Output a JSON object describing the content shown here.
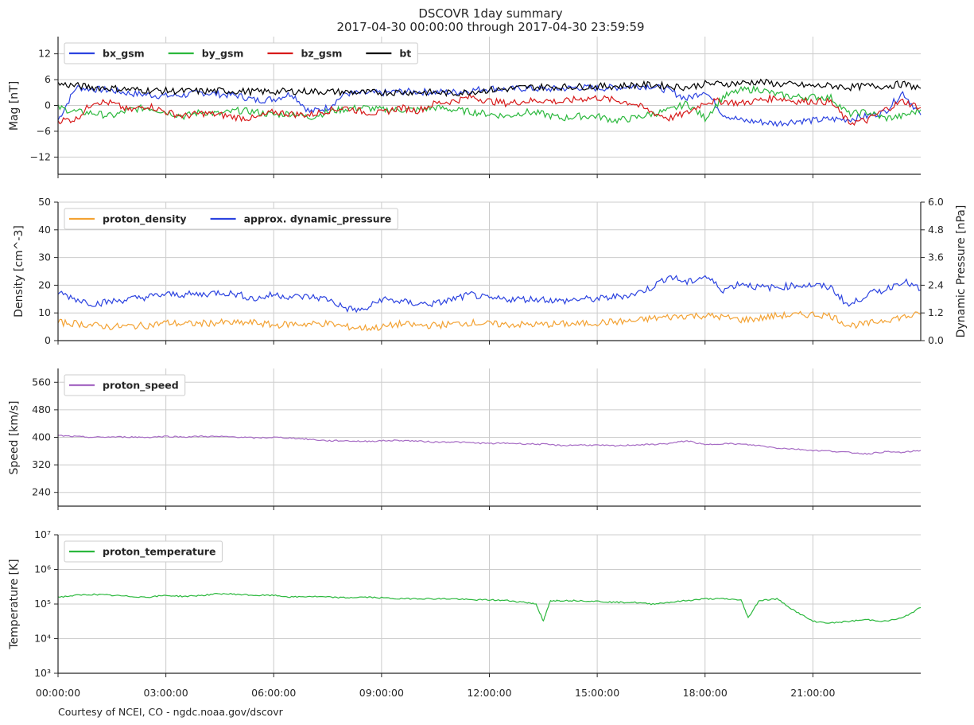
{
  "title_line1": "DSCOVR 1day summary",
  "title_line2": "2017-04-30 00:00:00 through 2017-04-30 23:59:59",
  "credit": "Courtesy of NCEI, CO - ngdc.noaa.gov/dscovr",
  "colors": {
    "grid": "#cccccc",
    "axis": "#262626",
    "bx_gsm": "#2c43e0",
    "by_gsm": "#2bb83d",
    "bz_gsm": "#d71a1a",
    "bt": "#000000",
    "proton_density": "#f3a233",
    "dynamic_pressure": "#2c43e0",
    "proton_speed": "#a66bc4",
    "proton_temperature": "#2bb83d"
  },
  "x_axis": {
    "range_hours": [
      0,
      24
    ],
    "tick_hours": [
      0,
      3,
      6,
      9,
      12,
      15,
      18,
      21
    ],
    "tick_labels": [
      "00:00:00",
      "03:00:00",
      "06:00:00",
      "09:00:00",
      "12:00:00",
      "15:00:00",
      "18:00:00",
      "21:00:00"
    ]
  },
  "chart_data": [
    {
      "type": "line",
      "id": "mag",
      "ylabel": "Mag   [nT]",
      "ylim": [
        -16,
        16
      ],
      "yticks": [
        -12,
        -6,
        0,
        6,
        12
      ],
      "ytick_labels": [
        "−12",
        "−6",
        "0",
        "6",
        "12"
      ],
      "grid": true,
      "legend_position": "top-left",
      "series": [
        {
          "name": "bx_gsm",
          "color_key": "bx_gsm",
          "x": [
            0,
            0.5,
            1,
            1.5,
            2,
            2.5,
            3,
            3.5,
            4,
            4.5,
            5,
            5.5,
            6,
            6.5,
            7,
            7.5,
            8,
            8.5,
            9,
            9.5,
            10,
            10.5,
            11,
            11.5,
            12,
            12.5,
            13,
            13.5,
            14,
            14.5,
            15,
            15.5,
            16,
            16.5,
            17,
            17.5,
            18,
            18.5,
            19,
            19.5,
            20,
            20.5,
            21,
            21.5,
            22,
            22.5,
            23,
            23.5,
            24
          ],
          "values": [
            -3.4,
            4.2,
            3.8,
            3.5,
            2.8,
            2.5,
            2.2,
            2.4,
            3,
            2.6,
            2.3,
            1.2,
            1.5,
            2.8,
            -1.5,
            -0.5,
            2.8,
            2.8,
            2.9,
            3.2,
            3.2,
            3.1,
            3.1,
            3.5,
            4,
            3.7,
            4,
            3.8,
            3.9,
            4.2,
            4,
            4.2,
            4.5,
            4.5,
            3.5,
            1.5,
            3.5,
            -2,
            -3.5,
            -3.8,
            -4.2,
            -3.6,
            -3.5,
            -3.2,
            -3.2,
            -2.5,
            -1.5,
            3,
            -2.2
          ]
        },
        {
          "name": "by_gsm",
          "color_key": "by_gsm",
          "x": [
            0,
            0.5,
            1,
            1.5,
            2,
            2.5,
            3,
            3.5,
            4,
            4.5,
            5,
            5.5,
            6,
            6.5,
            7,
            7.5,
            8,
            8.5,
            9,
            9.5,
            10,
            10.5,
            11,
            11.5,
            12,
            12.5,
            13,
            13.5,
            14,
            14.5,
            15,
            15.5,
            16,
            16.5,
            17,
            17.5,
            18,
            18.5,
            19,
            19.5,
            20,
            20.5,
            21,
            21.5,
            22,
            22.5,
            23,
            23.5,
            24
          ],
          "values": [
            -0.5,
            -1.5,
            -1.8,
            -2.5,
            -1,
            -0.5,
            -1.5,
            -2.5,
            -1.5,
            -2,
            -1.2,
            -1.5,
            -2.2,
            -1.8,
            -2.8,
            -1.5,
            -0.8,
            -0.5,
            -1,
            -1,
            -1,
            -0.5,
            -1,
            -1.5,
            -2,
            -2.5,
            -1.5,
            -2,
            -3,
            -2.5,
            -2.5,
            -3.5,
            -3,
            -2,
            -1.2,
            0.5,
            -3,
            2,
            3.5,
            3.8,
            2.5,
            2,
            2,
            1.8,
            -2,
            -1.5,
            -3,
            -2.5,
            -1
          ]
        },
        {
          "name": "bz_gsm",
          "color_key": "bz_gsm",
          "x": [
            0,
            0.5,
            1,
            1.5,
            2,
            2.5,
            3,
            3.5,
            4,
            4.5,
            5,
            5.5,
            6,
            6.5,
            7,
            7.5,
            8,
            8.5,
            9,
            9.5,
            10,
            10.5,
            11,
            11.5,
            12,
            12.5,
            13,
            13.5,
            14,
            14.5,
            15,
            15.5,
            16,
            16.5,
            17,
            17.5,
            18,
            18.5,
            19,
            19.5,
            20,
            20.5,
            21,
            21.5,
            22,
            22.5,
            23,
            23.5,
            24
          ],
          "values": [
            -3.5,
            -3.2,
            1,
            0.5,
            -1.2,
            0,
            -1.5,
            -2.5,
            -1.8,
            -2.2,
            -2.8,
            -3,
            -1.5,
            -2,
            -2.2,
            -1.2,
            -0.5,
            -1.5,
            -1.8,
            -0.5,
            -1.2,
            0.5,
            1,
            2,
            1,
            0.5,
            1,
            1.2,
            0.8,
            1.5,
            1.8,
            1.2,
            0.5,
            -1.5,
            -3,
            -1.8,
            0.8,
            1,
            0.5,
            1.2,
            1.8,
            1,
            1,
            0.8,
            -4,
            -3.5,
            -1,
            1,
            -0.5
          ]
        },
        {
          "name": "bt",
          "color_key": "bt",
          "x": [
            0,
            0.5,
            1,
            1.5,
            2,
            2.5,
            3,
            3.5,
            4,
            4.5,
            5,
            5.5,
            6,
            6.5,
            7,
            7.5,
            8,
            8.5,
            9,
            9.5,
            10,
            10.5,
            11,
            11.5,
            12,
            12.5,
            13,
            13.5,
            14,
            14.5,
            15,
            15.5,
            16,
            16.5,
            17,
            17.5,
            18,
            18.5,
            19,
            19.5,
            20,
            20.5,
            21,
            21.5,
            22,
            22.5,
            23,
            23.5,
            24
          ],
          "values": [
            5,
            4.6,
            4.2,
            4,
            3.7,
            3.5,
            3.4,
            3.3,
            3.3,
            3.4,
            3.3,
            3.2,
            3.2,
            3.3,
            3.3,
            3.2,
            3.1,
            3,
            3,
            3.1,
            3.1,
            3,
            2.8,
            3.2,
            3.6,
            3.8,
            4.2,
            4.3,
            4.3,
            4.4,
            4.4,
            4.5,
            4.7,
            4.8,
            4.5,
            4.2,
            5,
            5,
            5.2,
            5.5,
            5,
            4.8,
            4.5,
            4.6,
            4.2,
            4.5,
            4.5,
            5,
            4
          ]
        }
      ]
    },
    {
      "type": "line",
      "id": "density",
      "ylabel": "Density   [cm^-3]",
      "ylabel_right": "Dynamic Pressure  [nPa]",
      "ylim": [
        0,
        50
      ],
      "yticks": [
        0,
        10,
        20,
        30,
        40,
        50
      ],
      "ylim_right": [
        0,
        6
      ],
      "yticks_right": [
        0,
        1.2,
        2.4,
        3.6,
        4.8,
        6.0
      ],
      "ytick_labels_right": [
        "0.0",
        "1.2",
        "2.4",
        "3.6",
        "4.8",
        "6.0"
      ],
      "grid": true,
      "legend_position": "top-left",
      "series": [
        {
          "name": "proton_density",
          "color_key": "proton_density",
          "axis": "left",
          "x": [
            0,
            0.5,
            1,
            1.5,
            2,
            2.5,
            3,
            3.5,
            4,
            4.5,
            5,
            5.5,
            6,
            6.5,
            7,
            7.5,
            8,
            8.5,
            9,
            9.5,
            10,
            10.5,
            11,
            11.5,
            12,
            12.5,
            13,
            13.5,
            14,
            14.5,
            15,
            15.5,
            16,
            16.5,
            17,
            17.5,
            18,
            18.5,
            19,
            19.5,
            20,
            20.5,
            21,
            21.5,
            22,
            22.5,
            23,
            23.5,
            24
          ],
          "values": [
            6.5,
            6.2,
            5.5,
            5,
            5.2,
            5.5,
            6.5,
            6,
            6.2,
            6.5,
            6.3,
            6.5,
            5.5,
            6,
            6,
            6.2,
            5,
            4.5,
            4.8,
            6,
            5.5,
            5.5,
            6,
            6.5,
            6,
            5.8,
            5.8,
            5.8,
            6,
            6,
            6.5,
            6.8,
            7,
            8,
            8.5,
            9,
            9,
            8.5,
            7.5,
            8,
            9,
            9.2,
            9.5,
            9,
            5.5,
            6,
            7.5,
            8.5,
            9.5
          ]
        },
        {
          "name": "approx. dynamic_pressure",
          "color_key": "dynamic_pressure",
          "axis": "right",
          "x": [
            0,
            0.5,
            1,
            1.5,
            2,
            2.5,
            3,
            3.5,
            4,
            4.5,
            5,
            5.5,
            6,
            6.5,
            7,
            7.5,
            8,
            8.5,
            9,
            9.5,
            10,
            10.5,
            11,
            11.5,
            12,
            12.5,
            13,
            13.5,
            14,
            14.5,
            15,
            15.5,
            16,
            16.5,
            17,
            17.5,
            18,
            18.5,
            19,
            19.5,
            20,
            20.5,
            21,
            21.5,
            22,
            22.5,
            23,
            23.5,
            24
          ],
          "values": [
            2.1,
            1.8,
            1.6,
            1.7,
            1.8,
            1.9,
            2.0,
            2.0,
            2.0,
            2.1,
            2.0,
            1.8,
            2.0,
            1.9,
            1.9,
            1.8,
            1.4,
            1.3,
            1.8,
            1.7,
            1.6,
            1.6,
            1.8,
            2.0,
            1.8,
            1.8,
            1.8,
            1.8,
            1.7,
            1.8,
            1.8,
            1.9,
            2.0,
            2.3,
            2.8,
            2.5,
            2.8,
            2.2,
            2.5,
            2.3,
            2.3,
            2.4,
            2.4,
            2.3,
            1.5,
            2.0,
            2.2,
            2.6,
            2.2
          ]
        }
      ]
    },
    {
      "type": "line",
      "id": "speed",
      "ylabel": "Speed   [km/s]",
      "ylim": [
        200,
        600
      ],
      "yticks": [
        240,
        320,
        400,
        480,
        560
      ],
      "grid": true,
      "legend_position": "top-left",
      "series": [
        {
          "name": "proton_speed",
          "color_key": "proton_speed",
          "x": [
            0,
            0.5,
            1,
            1.5,
            2,
            2.5,
            3,
            3.5,
            4,
            4.5,
            5,
            5.5,
            6,
            6.5,
            7,
            7.5,
            8,
            8.5,
            9,
            9.5,
            10,
            10.5,
            11,
            11.5,
            12,
            12.5,
            13,
            13.5,
            14,
            14.5,
            15,
            15.5,
            16,
            16.5,
            17,
            17.5,
            18,
            18.5,
            19,
            19.5,
            20,
            20.5,
            21,
            21.5,
            22,
            22.5,
            23,
            23.5,
            24
          ],
          "values": [
            405,
            402,
            400,
            401,
            401,
            400,
            403,
            401,
            403,
            402,
            401,
            398,
            400,
            398,
            394,
            390,
            390,
            388,
            390,
            391,
            389,
            386,
            387,
            384,
            382,
            383,
            381,
            380,
            376,
            378,
            377,
            375,
            378,
            379,
            382,
            390,
            378,
            382,
            380,
            376,
            369,
            366,
            362,
            360,
            356,
            352,
            358,
            356,
            362
          ]
        }
      ]
    },
    {
      "type": "line",
      "id": "temperature",
      "ylabel": "Temperature   [K]",
      "yscale": "log",
      "ylim_log10": [
        3,
        7
      ],
      "yticks_log10": [
        3,
        4,
        5,
        6,
        7
      ],
      "ytick_labels": [
        "10³",
        "10⁴",
        "10⁵",
        "10⁶",
        "10⁷"
      ],
      "grid": true,
      "legend_position": "top-left",
      "series": [
        {
          "name": "proton_temperature",
          "color_key": "proton_temperature",
          "x": [
            0,
            0.5,
            1,
            1.5,
            2,
            2.5,
            3,
            3.5,
            4,
            4.5,
            5,
            5.5,
            6,
            6.5,
            7,
            7.5,
            8,
            8.5,
            9,
            9.5,
            10,
            10.5,
            11,
            11.5,
            12,
            12.5,
            13,
            13.3,
            13.5,
            13.7,
            14,
            14.5,
            15,
            15.5,
            16,
            16.5,
            17,
            17.5,
            18,
            18.5,
            19,
            19.2,
            19.5,
            20,
            20.5,
            21,
            21.5,
            22,
            22.5,
            23,
            23.5,
            24
          ],
          "log10_values": [
            5.2,
            5.25,
            5.28,
            5.25,
            5.22,
            5.2,
            5.25,
            5.22,
            5.25,
            5.3,
            5.28,
            5.25,
            5.25,
            5.2,
            5.22,
            5.2,
            5.18,
            5.2,
            5.18,
            5.15,
            5.16,
            5.15,
            5.15,
            5.12,
            5.12,
            5.1,
            5.05,
            5.0,
            4.5,
            5.1,
            5.1,
            5.1,
            5.08,
            5.05,
            5.05,
            5.0,
            5.05,
            5.1,
            5.15,
            5.15,
            5.12,
            4.6,
            5.1,
            5.15,
            4.8,
            4.5,
            4.45,
            4.5,
            4.55,
            4.5,
            4.6,
            4.9
          ]
        }
      ]
    }
  ]
}
